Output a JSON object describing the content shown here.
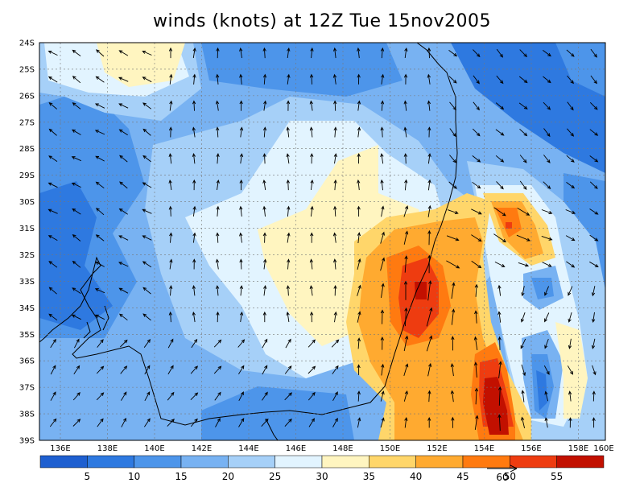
{
  "title": "winds (knots) at 12Z Tue 15nov2005",
  "lat_labels": [
    "24S",
    "25S",
    "26S",
    "27S",
    "28S",
    "29S",
    "30S",
    "31S",
    "32S",
    "33S",
    "34S",
    "35S",
    "36S",
    "37S",
    "38S",
    "39S"
  ],
  "lon_labels": [
    "136E",
    "138E",
    "140E",
    "142E",
    "144E",
    "146E",
    "148E",
    "150E",
    "152E",
    "154E",
    "156E",
    "158E",
    "160E"
  ],
  "colorbar": {
    "levels": [
      "5",
      "10",
      "15",
      "20",
      "25",
      "30",
      "35",
      "40",
      "45",
      "50",
      "55"
    ],
    "colors": [
      "#1e5fd0",
      "#2e79e0",
      "#4d95ea",
      "#78b2f2",
      "#a6d0f8",
      "#e2f4ff",
      "#fff5c0",
      "#ffd66a",
      "#ffaa30",
      "#ff7a10",
      "#ee3c10",
      "#c21000"
    ],
    "arrow_scale_label": "60"
  },
  "fill_colors": {
    "c5": "#1e5fd0",
    "c10": "#2e79e0",
    "c15": "#4d95ea",
    "c20": "#78b2f2",
    "c25": "#a6d0f8",
    "c30": "#e2f4ff",
    "c35": "#fff5c0",
    "c40": "#ffd66a",
    "c45": "#ffaa30",
    "c50": "#ff7a10",
    "c55": "#ee3c10",
    "c60": "#c21000"
  }
}
